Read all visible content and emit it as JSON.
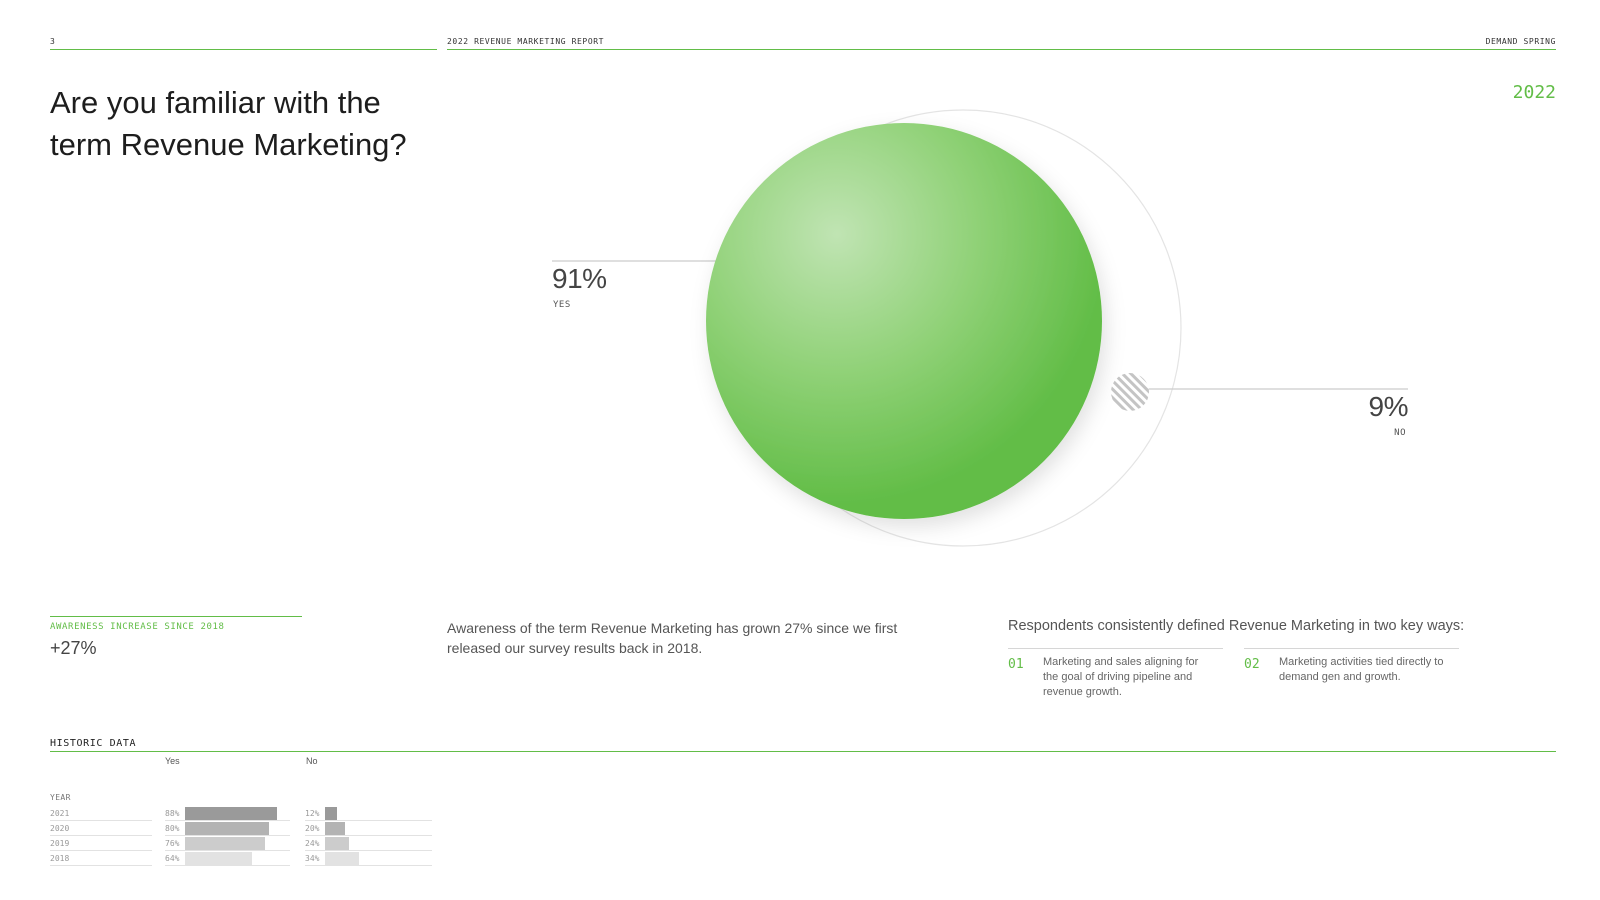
{
  "header": {
    "page_number": "3",
    "report_title": "2022 REVENUE MARKETING REPORT",
    "brand": "DEMAND SPRING"
  },
  "question": "Are you familiar with the term Revenue Marketing?",
  "year": "2022",
  "chart_data": {
    "type": "pie",
    "year": "2022",
    "slices": [
      {
        "label": "YES",
        "value": 91,
        "display": "91%",
        "color": "#62bd47"
      },
      {
        "label": "NO",
        "value": 9,
        "display": "9%",
        "color": "#bdbdbd"
      }
    ]
  },
  "awareness": {
    "label": "AWARENESS INCREASE SINCE 2018",
    "value": "+27%",
    "description": "Awareness of the term Revenue Marketing has grown 27% since we first released our survey results back in 2018."
  },
  "respondents": {
    "title": "Respondents consistently defined Revenue Marketing in two key ways:",
    "items": [
      {
        "num": "01",
        "text": "Marketing and sales aligning for the goal of driving pipeline and revenue growth."
      },
      {
        "num": "02",
        "text": "Marketing activities tied directly to demand gen and growth."
      }
    ]
  },
  "historic": {
    "title": "HISTORIC DATA",
    "yes_label": "Yes",
    "no_label": "No",
    "year_label": "YEAR",
    "rows": [
      {
        "year": "2021",
        "yes": 88,
        "yes_label": "88%",
        "no": 12,
        "no_label": "12%",
        "shade": "#9a9a9a"
      },
      {
        "year": "2020",
        "yes": 80,
        "yes_label": "80%",
        "no": 20,
        "no_label": "20%",
        "shade": "#b3b3b3"
      },
      {
        "year": "2019",
        "yes": 76,
        "yes_label": "76%",
        "no": 24,
        "no_label": "24%",
        "shade": "#cccccc"
      },
      {
        "year": "2018",
        "yes": 64,
        "yes_label": "64%",
        "no": 34,
        "no_label": "34%",
        "shade": "#e2e2e2"
      }
    ]
  }
}
